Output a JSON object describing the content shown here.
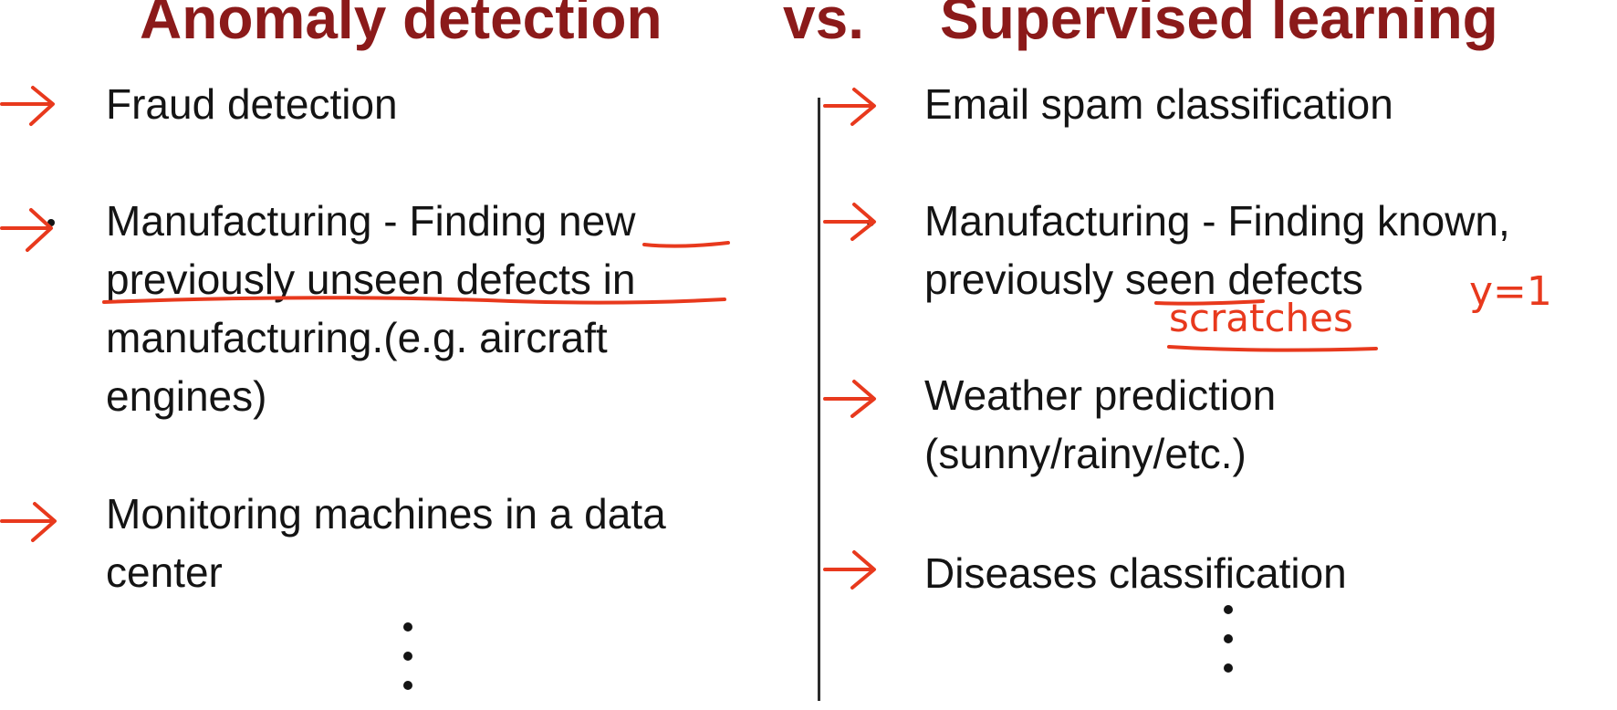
{
  "title": {
    "left": "Anomaly detection",
    "vs": "vs.",
    "right": "Supervised learning"
  },
  "left_items": [
    {
      "lines": [
        "Fraud detection"
      ]
    },
    {
      "lines": [
        "Manufacturing -  Finding new",
        "previously unseen defects in",
        "manufacturing.(e.g. aircraft",
        "engines)"
      ]
    },
    {
      "lines": [
        "Monitoring machines in a data",
        "center"
      ]
    }
  ],
  "right_items": [
    {
      "lines": [
        "Email spam classification"
      ]
    },
    {
      "lines": [
        "Manufacturing -  Finding known,",
        "previously seen defects"
      ]
    },
    {
      "lines": [
        "Weather prediction",
        "(sunny/rainy/etc.)"
      ]
    },
    {
      "lines": [
        "Diseases classification"
      ]
    }
  ],
  "annotations": {
    "scratches": "scratches",
    "label": "y=1"
  },
  "colors": {
    "title": "#8b1a1a",
    "ink": "#e8391d",
    "text": "#141414"
  }
}
